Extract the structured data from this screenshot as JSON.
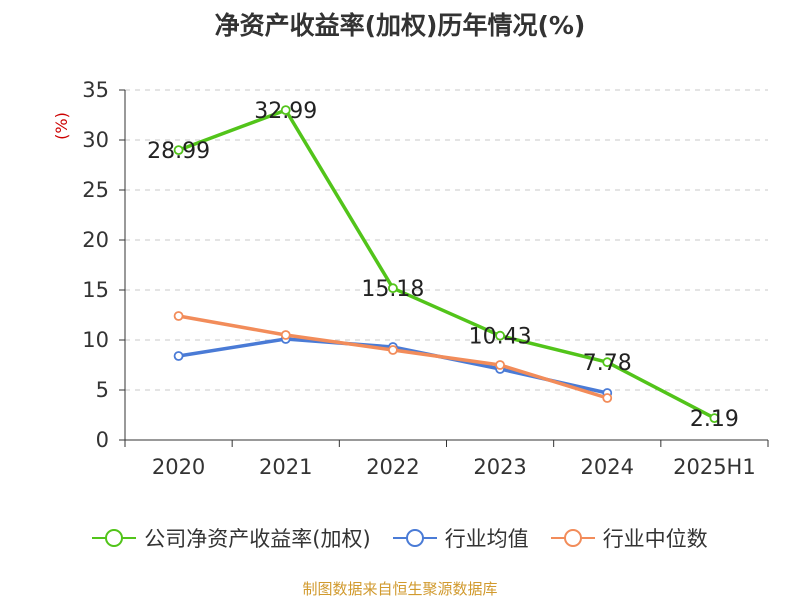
{
  "title": "净资产收益率(加权)历年情况(%)",
  "source_text": "制图数据来自恒生聚源数据库",
  "chart_data": {
    "type": "line",
    "title": "净资产收益率(加权)历年情况(%)",
    "xlabel": "",
    "ylabel": "(%)",
    "categories": [
      "2020",
      "2021",
      "2022",
      "2023",
      "2024",
      "2025H1"
    ],
    "ylim": [
      0,
      35
    ],
    "yticks": [
      0,
      5,
      10,
      15,
      20,
      25,
      30,
      35
    ],
    "grid": true,
    "legend_position": "bottom",
    "series": [
      {
        "name": "公司净资产收益率(加权)",
        "color": "#52c41a",
        "values": [
          28.99,
          32.99,
          15.18,
          10.43,
          7.78,
          2.19
        ],
        "labels": [
          "28.99",
          "32.99",
          "15.18",
          "10.43",
          "7.78",
          "2.19"
        ]
      },
      {
        "name": "行业均值",
        "color": "#4a7bd6",
        "values": [
          8.4,
          10.1,
          9.3,
          7.1,
          4.7,
          null
        ]
      },
      {
        "name": "行业中位数",
        "color": "#f28c5a",
        "values": [
          12.4,
          10.5,
          9.0,
          7.5,
          4.2,
          null
        ]
      }
    ]
  }
}
